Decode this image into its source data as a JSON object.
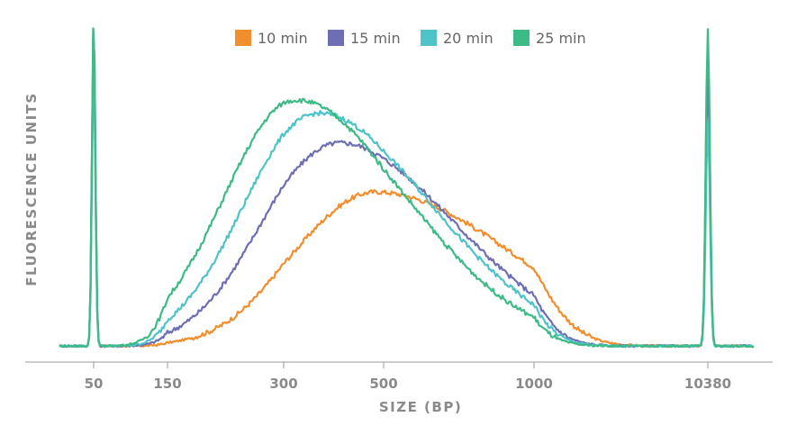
{
  "chart_data": {
    "type": "line",
    "title": "",
    "xlabel": "SIZE (BP)",
    "ylabel": "FLUORESCENCE UNITS",
    "x_ticks": [
      "50",
      "150",
      "300",
      "500",
      "1000",
      "10380"
    ],
    "legend_position": "top-center",
    "grid": false,
    "ylim": [
      0,
      100
    ],
    "marker_peaks": {
      "lower_bp": 50,
      "upper_bp": 10380
    },
    "series": [
      {
        "name": "10 min",
        "color": "#f18e2d",
        "peak_bp": 480,
        "peak_height": 47,
        "lower_marker_height": 92,
        "upper_marker_height": 93
      },
      {
        "name": "15 min",
        "color": "#6e6eb4",
        "peak_bp": 400,
        "peak_height": 62,
        "lower_marker_height": 100,
        "upper_marker_height": 82
      },
      {
        "name": "20 min",
        "color": "#4ec3c8",
        "peak_bp": 360,
        "peak_height": 71,
        "lower_marker_height": 85,
        "upper_marker_height": 68
      },
      {
        "name": "25 min",
        "color": "#3dbb86",
        "peak_bp": 320,
        "peak_height": 75,
        "lower_marker_height": 100,
        "upper_marker_height": 97
      }
    ]
  }
}
